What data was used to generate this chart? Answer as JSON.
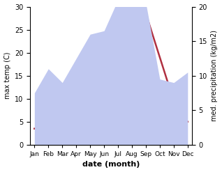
{
  "months": [
    "Jan",
    "Feb",
    "Mar",
    "Apr",
    "May",
    "Jun",
    "Jul",
    "Aug",
    "Sep",
    "Oct",
    "Nov",
    "Dec"
  ],
  "x": [
    0,
    1,
    2,
    3,
    4,
    5,
    6,
    7,
    8,
    9,
    10,
    11
  ],
  "temperature": [
    3.5,
    4.0,
    9.0,
    14.0,
    19.0,
    22.0,
    25.0,
    29.0,
    28.5,
    19.0,
    9.5,
    5.0
  ],
  "precipitation": [
    7.5,
    11.0,
    9.0,
    12.5,
    16.0,
    16.5,
    21.0,
    21.0,
    20.5,
    9.5,
    9.0,
    10.5
  ],
  "temp_color": "#b03040",
  "precip_fill_color": "#c0c8f0",
  "temp_ylim": [
    0,
    30
  ],
  "precip_ylim": [
    0,
    20
  ],
  "temp_yticks": [
    0,
    5,
    10,
    15,
    20,
    25,
    30
  ],
  "precip_yticks": [
    0,
    5,
    10,
    15,
    20
  ],
  "xlabel": "date (month)",
  "ylabel_left": "max temp (C)",
  "ylabel_right": "med. precipitation (kg/m2)",
  "background_color": "#ffffff",
  "linewidth": 1.8,
  "xlabel_fontsize": 8,
  "ylabel_fontsize": 7,
  "tick_fontsize": 7,
  "month_fontsize": 6.5
}
